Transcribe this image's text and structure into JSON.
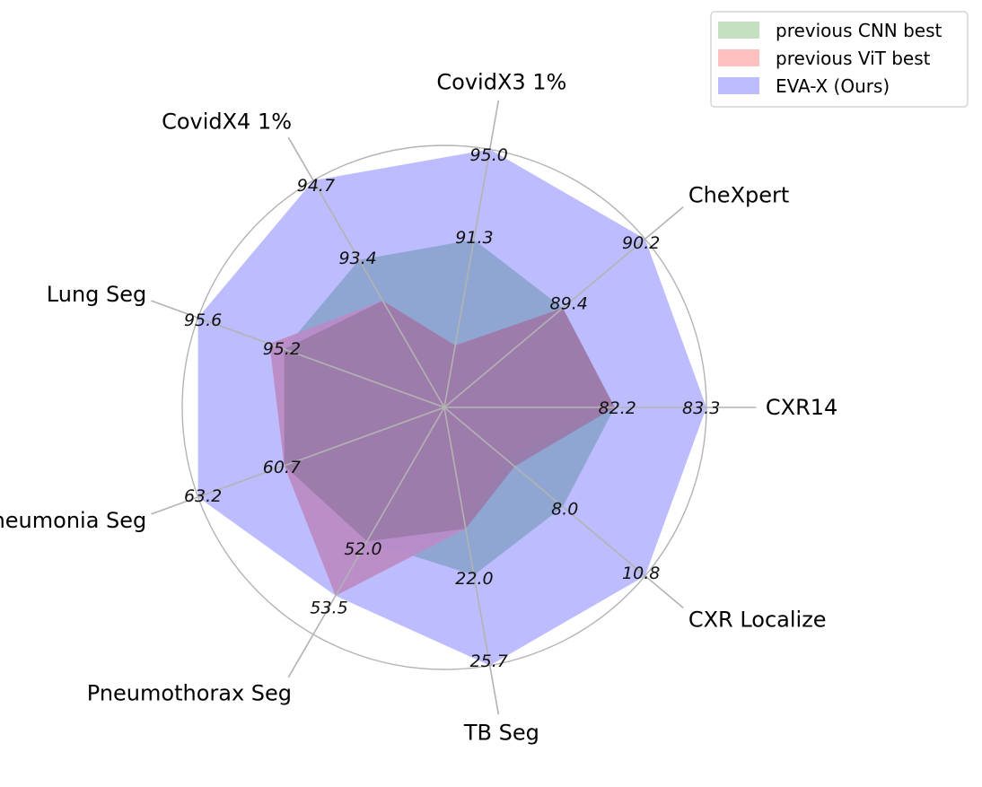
{
  "chart_data": {
    "type": "radar",
    "axes": [
      "CXR14",
      "CheXpert",
      "CovidX3 1%",
      "CovidX4 1%",
      "Lung Seg",
      "Pneumonia Seg",
      "Pneumothorax Seg",
      "TB Seg",
      "CXR Localize"
    ],
    "series": [
      {
        "name": "previous CNN best",
        "color": "#c4e0c0",
        "radii": [
          0.65,
          0.59,
          0.24,
          0.47,
          0.65,
          0.65,
          0.59,
          0.47,
          0.35
        ]
      },
      {
        "name": "previous ViT best",
        "color": "#ffc0c0",
        "radii": [
          0.65,
          0.59,
          0.24,
          0.47,
          0.71,
          0.65,
          0.83,
          0.47,
          0.3
        ]
      },
      {
        "name": "EVA-X (Ours)",
        "color": "#bcbcff",
        "radii": [
          1.0,
          1.0,
          1.0,
          1.0,
          1.0,
          1.0,
          0.83,
          1.0,
          1.0
        ]
      }
    ],
    "overlay_radii": [
      0.65,
      0.59,
      0.65,
      0.65,
      0.65,
      0.65,
      0.59,
      0.65,
      0.59
    ],
    "value_labels": {
      "best": [
        "83.3",
        "90.2",
        "95.0",
        "94.7",
        "95.6",
        "63.2",
        "53.5",
        "25.7",
        "10.8"
      ],
      "second": [
        "82.2",
        "89.4",
        "91.3",
        "93.4",
        "95.2",
        "60.7",
        "52.0",
        "22.0",
        "8.0"
      ]
    },
    "grid_rings": 5,
    "grid": true,
    "legend_position": "top-right"
  }
}
